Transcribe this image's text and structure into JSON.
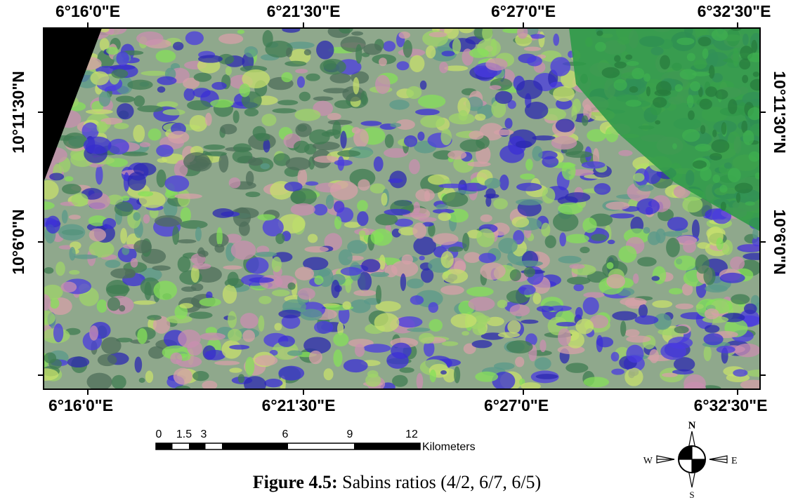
{
  "map": {
    "top_labels": [
      "6°16'0\"E",
      "6°21'30\"E",
      "6°27'0\"E",
      "6°32'30\"E"
    ],
    "bottom_labels": [
      "6°16'0\"E",
      "6°21'30\"E",
      "6°27'0\"E",
      "6°32'30\"E"
    ],
    "left_labels": [
      "10°11'30\"N",
      "10°6'0\"N"
    ],
    "right_labels": [
      "10°11'30\"N",
      "10°6'0\"N"
    ]
  },
  "scale_bar": {
    "labels": [
      "0",
      "1.5",
      "3",
      "6",
      "9",
      "12"
    ],
    "unit": "Kilometers"
  },
  "north_arrow": {
    "n": "N",
    "s": "S",
    "e": "E",
    "w": "W"
  },
  "caption": {
    "label": "Figure 4.5:",
    "text": "Sabins ratios (4/2, 6/7, 6/5)"
  }
}
